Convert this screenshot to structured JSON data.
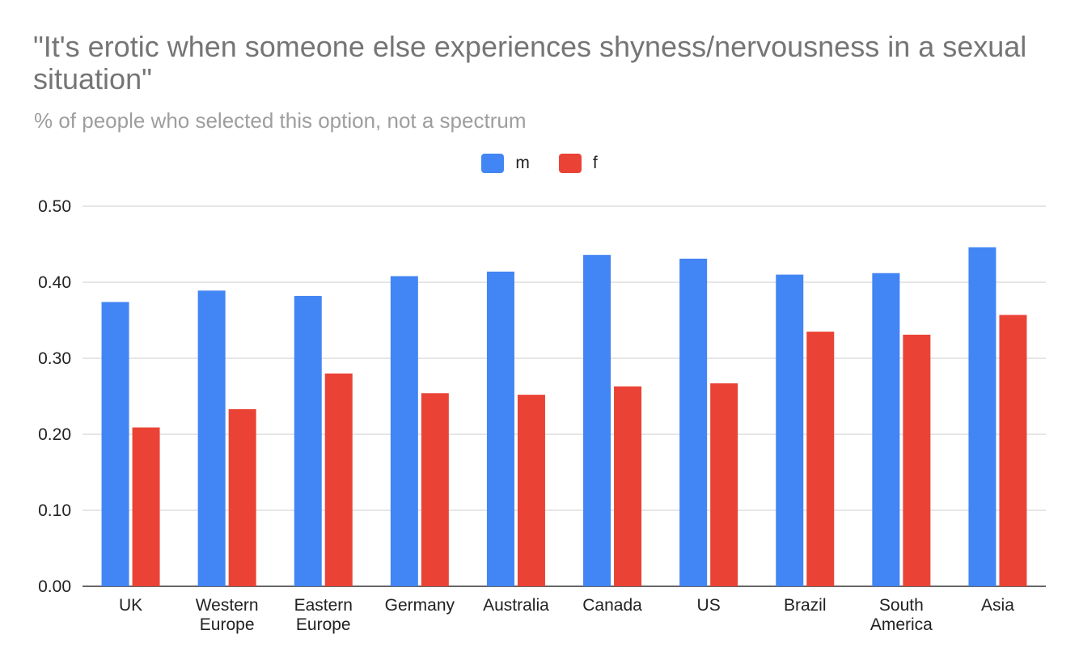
{
  "chart_data": {
    "type": "bar",
    "title": "\"It's erotic when someone else experiences shyness/nervousness in a sexual situation\"",
    "subtitle": "% of people who selected this option, not a spectrum",
    "categories": [
      [
        "UK"
      ],
      [
        "Western",
        "Europe"
      ],
      [
        "Eastern",
        "Europe"
      ],
      [
        "Germany"
      ],
      [
        "Australia"
      ],
      [
        "Canada"
      ],
      [
        "US"
      ],
      [
        "Brazil"
      ],
      [
        "South",
        "America"
      ],
      [
        "Asia"
      ]
    ],
    "series": [
      {
        "name": "m",
        "color": "#4285f4",
        "values": [
          0.374,
          0.389,
          0.382,
          0.408,
          0.414,
          0.436,
          0.431,
          0.41,
          0.412,
          0.446
        ]
      },
      {
        "name": "f",
        "color": "#ea4335",
        "values": [
          0.209,
          0.233,
          0.28,
          0.254,
          0.252,
          0.263,
          0.267,
          0.335,
          0.331,
          0.357
        ]
      }
    ],
    "ylim": [
      0,
      0.5
    ],
    "yticks": [
      "0.00",
      "0.10",
      "0.20",
      "0.30",
      "0.40",
      "0.50"
    ],
    "grid": true,
    "legend_position": "top-center"
  }
}
